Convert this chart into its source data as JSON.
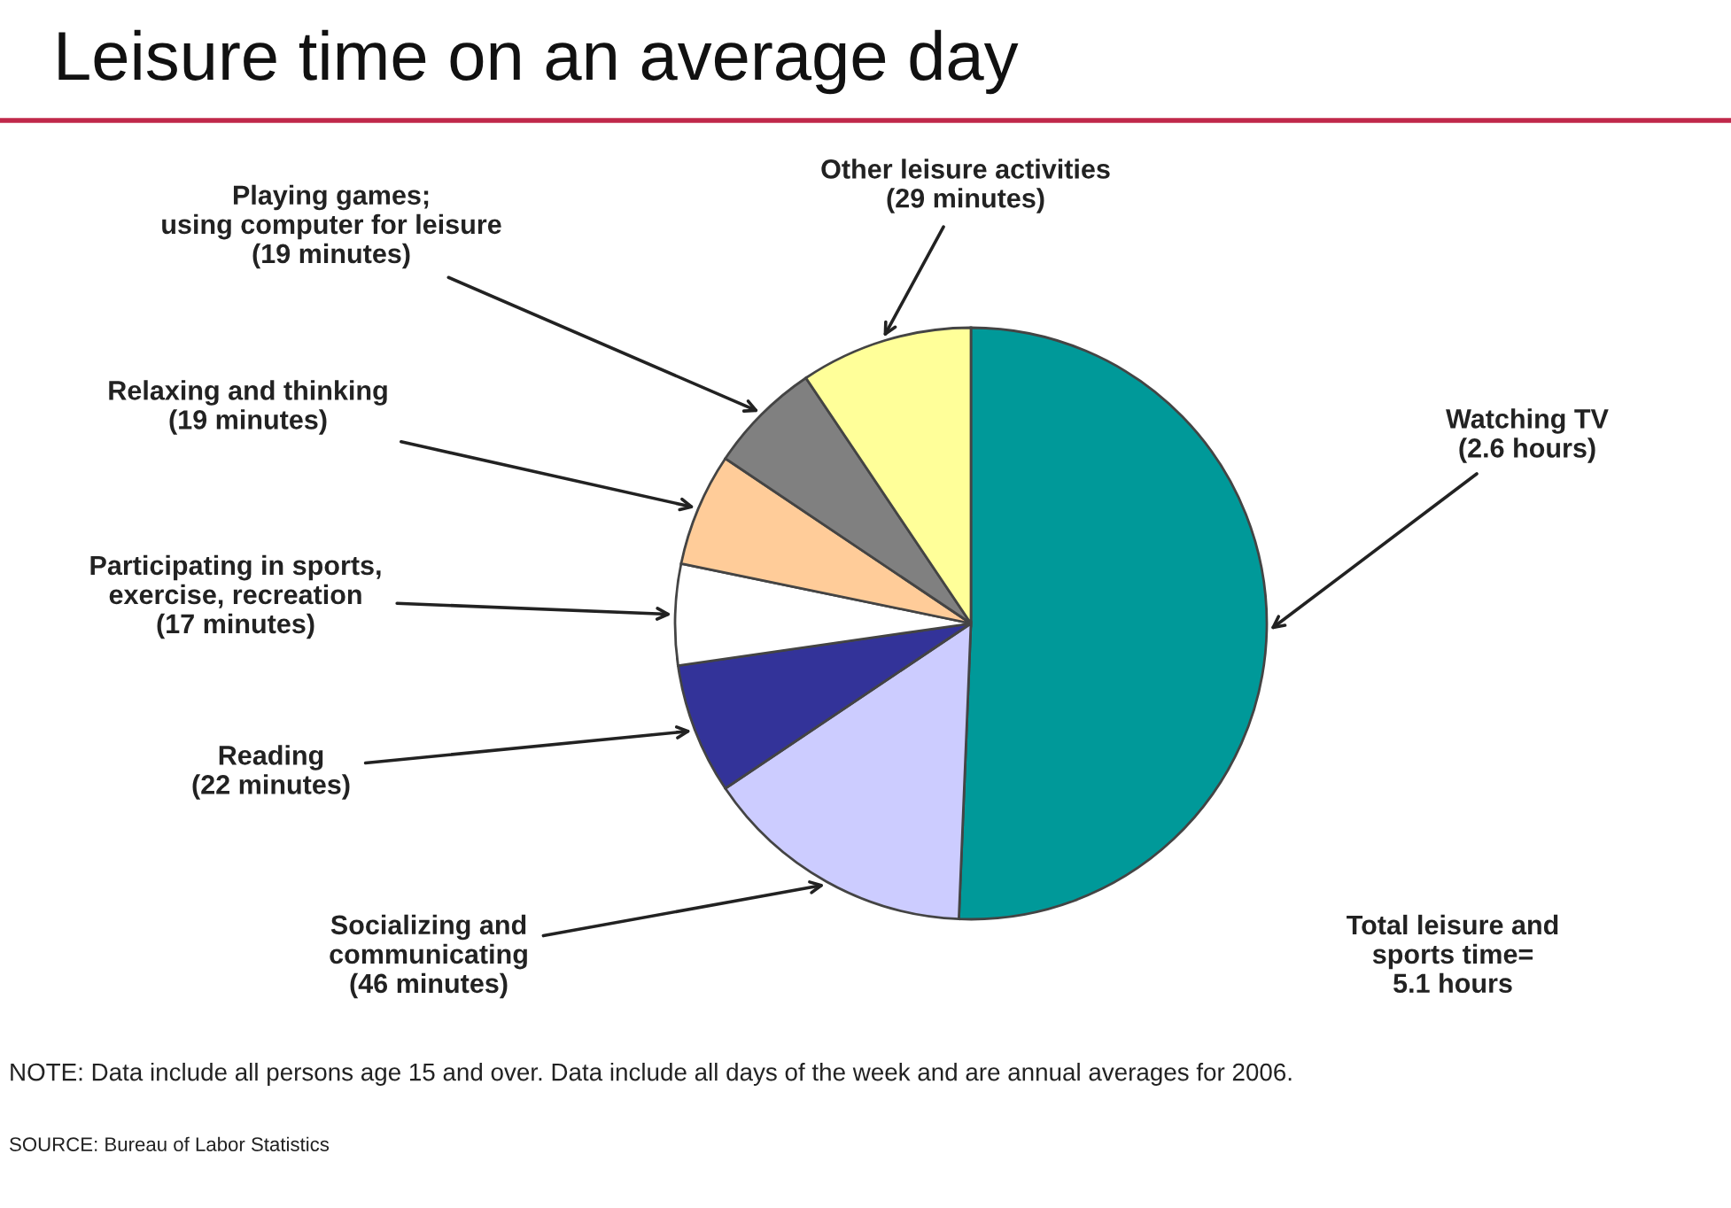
{
  "chart_data": {
    "type": "pie",
    "title": "Leisure time on an average day",
    "categories": [
      "Watching TV\n(2.6 hours)",
      "Socializing and\ncommunicating\n(46 minutes)",
      "Reading\n(22 minutes)",
      "Participating in sports,\nexercise, recreation\n(17 minutes)",
      "Relaxing and thinking\n(19 minutes)",
      "Playing games;\nusing computer for leisure\n(19 minutes)",
      "Other leisure activities\n(29 minutes)"
    ],
    "values": [
      156,
      46,
      22,
      17,
      19,
      19,
      29
    ],
    "colors": [
      "#009999",
      "#ccccff",
      "#333399",
      "#ffffff",
      "#ffcc99",
      "#808080",
      "#ffff99"
    ],
    "annotations": [
      "Total leisure and\nsports time=\n5.1 hours",
      "NOTE: Data include all persons age 15 and over. Data include all days of the week and are annual averages for 2006.",
      "SOURCE: Bureau of Labor Statistics"
    ],
    "legend": false
  }
}
